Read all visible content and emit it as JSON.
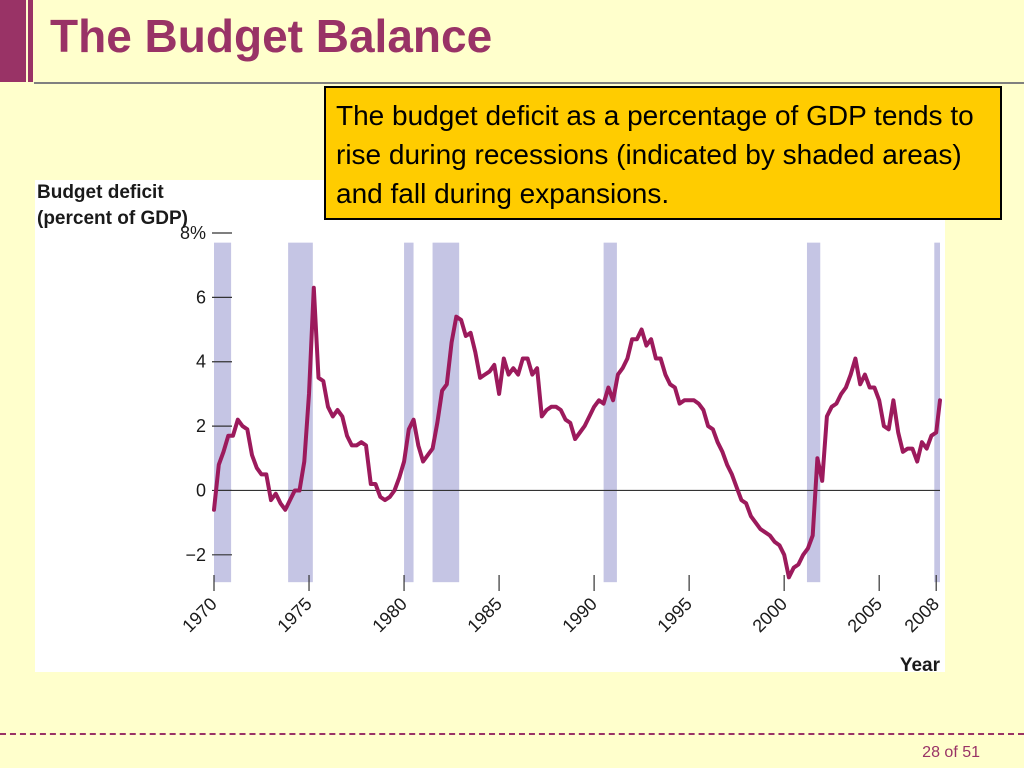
{
  "slide": {
    "title": "The Budget Balance",
    "callout": "The budget deficit as a percentage of GDP tends to rise during recessions (indicated by shaded areas) and fall during expansions.",
    "page_number": "28 of 51"
  },
  "colors": {
    "background": "#ffffcc",
    "accent": "#993366",
    "callout_bg": "#ffcc00",
    "line": "#9c1a5c",
    "recession_shade": "#c5c5e4"
  },
  "chart_data": {
    "type": "line",
    "ylabel_lines": [
      "Budget deficit",
      "(percent of GDP)"
    ],
    "xlabel": "Year",
    "ylim": [
      -3,
      8
    ],
    "xlim": [
      1970,
      2008.2
    ],
    "y_ticks": [
      {
        "value": 8,
        "label": "8%"
      },
      {
        "value": 6,
        "label": "6"
      },
      {
        "value": 4,
        "label": "4"
      },
      {
        "value": 2,
        "label": "2"
      },
      {
        "value": 0,
        "label": "0"
      },
      {
        "value": -2,
        "label": "−2"
      }
    ],
    "x_ticks": [
      {
        "value": 1970,
        "label": "1970"
      },
      {
        "value": 1975,
        "label": "1975"
      },
      {
        "value": 1980,
        "label": "1980"
      },
      {
        "value": 1985,
        "label": "1985"
      },
      {
        "value": 1990,
        "label": "1990"
      },
      {
        "value": 1995,
        "label": "1995"
      },
      {
        "value": 2000,
        "label": "2000"
      },
      {
        "value": 2005,
        "label": "2005"
      },
      {
        "value": 2008,
        "label": "2008"
      }
    ],
    "recessions": [
      [
        1970.0,
        1970.9
      ],
      [
        1973.9,
        1975.2
      ],
      [
        1980.0,
        1980.5
      ],
      [
        1981.5,
        1982.9
      ],
      [
        1990.5,
        1991.2
      ],
      [
        2001.2,
        2001.9
      ],
      [
        2007.9,
        2008.4
      ]
    ],
    "series": [
      {
        "points": [
          [
            1970.0,
            -0.6
          ],
          [
            1970.25,
            0.8
          ],
          [
            1970.5,
            1.2
          ],
          [
            1970.75,
            1.7
          ],
          [
            1971.0,
            1.7
          ],
          [
            1971.25,
            2.2
          ],
          [
            1971.5,
            2.0
          ],
          [
            1971.75,
            1.9
          ],
          [
            1972.0,
            1.1
          ],
          [
            1972.25,
            0.7
          ],
          [
            1972.5,
            0.5
          ],
          [
            1972.75,
            0.5
          ],
          [
            1973.0,
            -0.3
          ],
          [
            1973.25,
            -0.1
          ],
          [
            1973.5,
            -0.4
          ],
          [
            1973.75,
            -0.6
          ],
          [
            1974.0,
            -0.3
          ],
          [
            1974.25,
            0.0
          ],
          [
            1974.5,
            0.0
          ],
          [
            1974.75,
            0.9
          ],
          [
            1975.0,
            3.0
          ],
          [
            1975.25,
            6.3
          ],
          [
            1975.5,
            3.5
          ],
          [
            1975.75,
            3.4
          ],
          [
            1976.0,
            2.6
          ],
          [
            1976.25,
            2.3
          ],
          [
            1976.5,
            2.5
          ],
          [
            1976.75,
            2.3
          ],
          [
            1977.0,
            1.7
          ],
          [
            1977.25,
            1.4
          ],
          [
            1977.5,
            1.4
          ],
          [
            1977.75,
            1.5
          ],
          [
            1978.0,
            1.4
          ],
          [
            1978.25,
            0.2
          ],
          [
            1978.5,
            0.2
          ],
          [
            1978.75,
            -0.2
          ],
          [
            1979.0,
            -0.3
          ],
          [
            1979.25,
            -0.2
          ],
          [
            1979.5,
            0.0
          ],
          [
            1979.75,
            0.4
          ],
          [
            1980.0,
            0.9
          ],
          [
            1980.25,
            1.9
          ],
          [
            1980.5,
            2.2
          ],
          [
            1980.75,
            1.4
          ],
          [
            1981.0,
            0.9
          ],
          [
            1981.25,
            1.1
          ],
          [
            1981.5,
            1.3
          ],
          [
            1981.75,
            2.1
          ],
          [
            1982.0,
            3.1
          ],
          [
            1982.25,
            3.3
          ],
          [
            1982.5,
            4.6
          ],
          [
            1982.75,
            5.4
          ],
          [
            1983.0,
            5.3
          ],
          [
            1983.25,
            4.8
          ],
          [
            1983.5,
            4.9
          ],
          [
            1983.75,
            4.3
          ],
          [
            1984.0,
            3.5
          ],
          [
            1984.25,
            3.6
          ],
          [
            1984.5,
            3.7
          ],
          [
            1984.75,
            3.9
          ],
          [
            1985.0,
            3.0
          ],
          [
            1985.25,
            4.1
          ],
          [
            1985.5,
            3.6
          ],
          [
            1985.75,
            3.8
          ],
          [
            1986.0,
            3.6
          ],
          [
            1986.25,
            4.1
          ],
          [
            1986.5,
            4.1
          ],
          [
            1986.75,
            3.6
          ],
          [
            1987.0,
            3.8
          ],
          [
            1987.25,
            2.3
          ],
          [
            1987.5,
            2.5
          ],
          [
            1987.75,
            2.6
          ],
          [
            1988.0,
            2.6
          ],
          [
            1988.25,
            2.5
          ],
          [
            1988.5,
            2.2
          ],
          [
            1988.75,
            2.1
          ],
          [
            1989.0,
            1.6
          ],
          [
            1989.25,
            1.8
          ],
          [
            1989.5,
            2.0
          ],
          [
            1989.75,
            2.3
          ],
          [
            1990.0,
            2.6
          ],
          [
            1990.25,
            2.8
          ],
          [
            1990.5,
            2.7
          ],
          [
            1990.75,
            3.2
          ],
          [
            1991.0,
            2.8
          ],
          [
            1991.25,
            3.6
          ],
          [
            1991.5,
            3.8
          ],
          [
            1991.75,
            4.1
          ],
          [
            1992.0,
            4.7
          ],
          [
            1992.25,
            4.7
          ],
          [
            1992.5,
            5.0
          ],
          [
            1992.75,
            4.5
          ],
          [
            1993.0,
            4.7
          ],
          [
            1993.25,
            4.1
          ],
          [
            1993.5,
            4.1
          ],
          [
            1993.75,
            3.6
          ],
          [
            1994.0,
            3.3
          ],
          [
            1994.25,
            3.2
          ],
          [
            1994.5,
            2.7
          ],
          [
            1994.75,
            2.8
          ],
          [
            1995.0,
            2.8
          ],
          [
            1995.25,
            2.8
          ],
          [
            1995.5,
            2.7
          ],
          [
            1995.75,
            2.5
          ],
          [
            1996.0,
            2.0
          ],
          [
            1996.25,
            1.9
          ],
          [
            1996.5,
            1.5
          ],
          [
            1996.75,
            1.2
          ],
          [
            1997.0,
            0.8
          ],
          [
            1997.25,
            0.5
          ],
          [
            1997.5,
            0.1
          ],
          [
            1997.75,
            -0.3
          ],
          [
            1998.0,
            -0.4
          ],
          [
            1998.25,
            -0.8
          ],
          [
            1998.5,
            -1.0
          ],
          [
            1998.75,
            -1.2
          ],
          [
            1999.0,
            -1.3
          ],
          [
            1999.25,
            -1.4
          ],
          [
            1999.5,
            -1.6
          ],
          [
            1999.75,
            -1.7
          ],
          [
            2000.0,
            -2.0
          ],
          [
            2000.25,
            -2.7
          ],
          [
            2000.5,
            -2.4
          ],
          [
            2000.75,
            -2.3
          ],
          [
            2001.0,
            -2.0
          ],
          [
            2001.25,
            -1.8
          ],
          [
            2001.5,
            -1.4
          ],
          [
            2001.75,
            1.0
          ],
          [
            2002.0,
            0.3
          ],
          [
            2002.25,
            2.3
          ],
          [
            2002.5,
            2.6
          ],
          [
            2002.75,
            2.7
          ],
          [
            2003.0,
            3.0
          ],
          [
            2003.25,
            3.2
          ],
          [
            2003.5,
            3.6
          ],
          [
            2003.75,
            4.1
          ],
          [
            2004.0,
            3.3
          ],
          [
            2004.25,
            3.6
          ],
          [
            2004.5,
            3.2
          ],
          [
            2004.75,
            3.2
          ],
          [
            2005.0,
            2.8
          ],
          [
            2005.25,
            2.0
          ],
          [
            2005.5,
            1.9
          ],
          [
            2005.75,
            2.8
          ],
          [
            2006.0,
            1.8
          ],
          [
            2006.25,
            1.2
          ],
          [
            2006.5,
            1.3
          ],
          [
            2006.75,
            1.3
          ],
          [
            2007.0,
            0.9
          ],
          [
            2007.25,
            1.5
          ],
          [
            2007.5,
            1.3
          ],
          [
            2007.75,
            1.7
          ],
          [
            2008.0,
            1.8
          ],
          [
            2008.2,
            2.8
          ]
        ]
      }
    ]
  }
}
